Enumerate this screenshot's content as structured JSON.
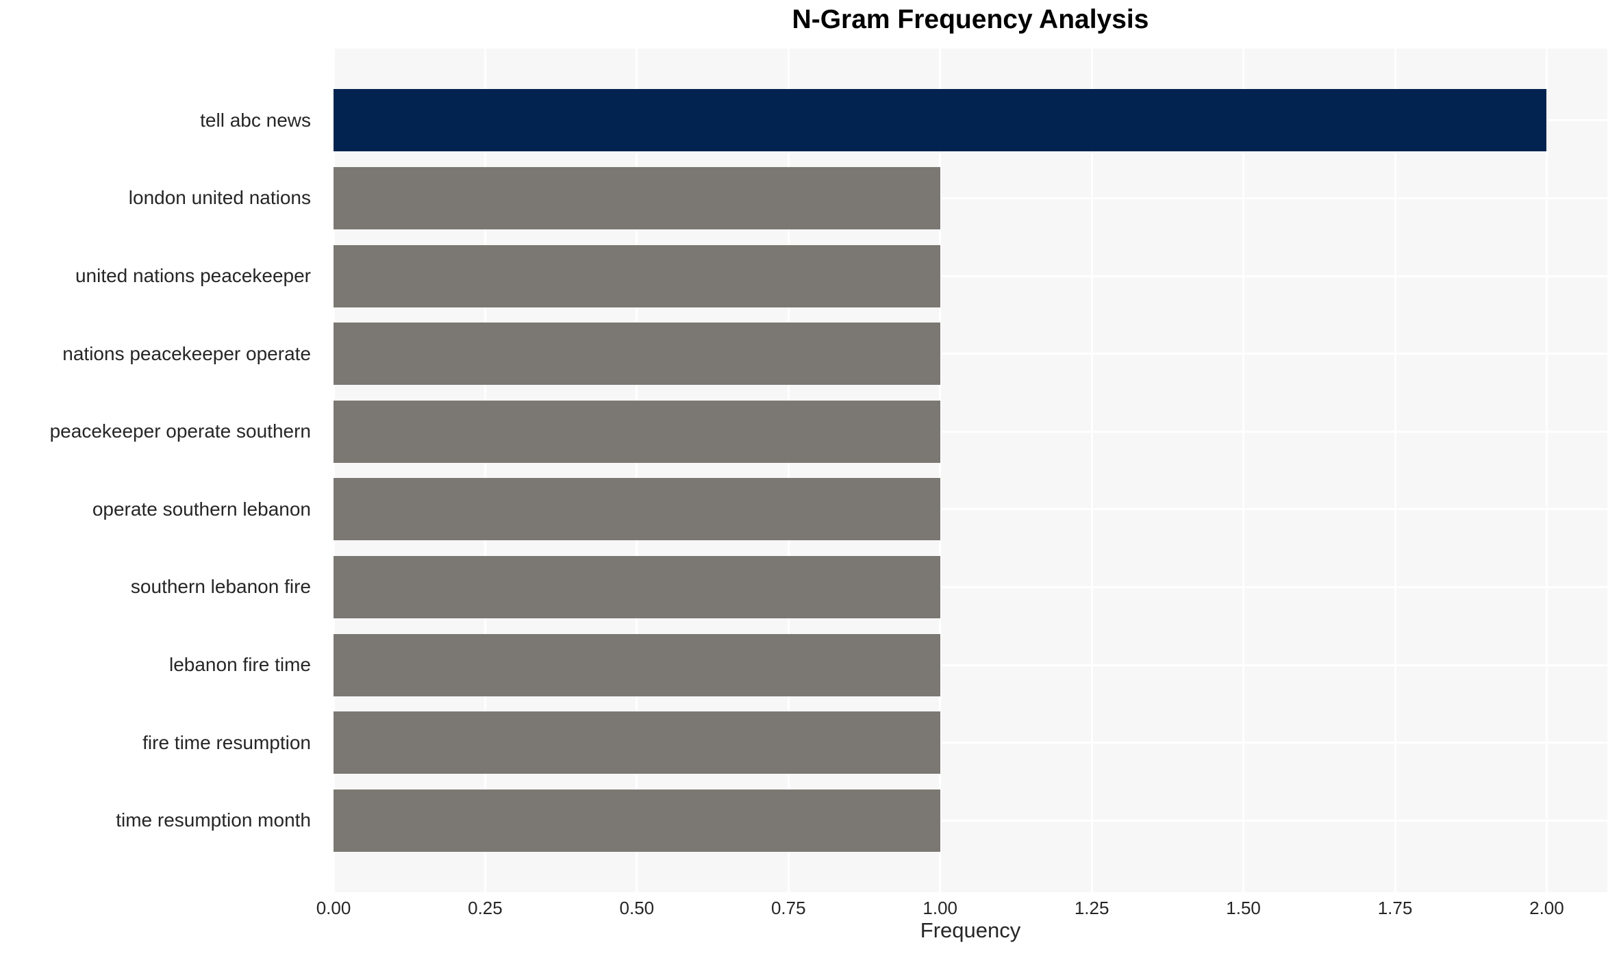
{
  "chart_data": {
    "type": "bar",
    "orientation": "horizontal",
    "title": "N-Gram Frequency Analysis",
    "xlabel": "Frequency",
    "ylabel": "",
    "categories": [
      "tell abc news",
      "london united nations",
      "united nations peacekeeper",
      "nations peacekeeper operate",
      "peacekeeper operate southern",
      "operate southern lebanon",
      "southern lebanon fire",
      "lebanon fire time",
      "fire time resumption",
      "time resumption month"
    ],
    "values": [
      2.0,
      1.0,
      1.0,
      1.0,
      1.0,
      1.0,
      1.0,
      1.0,
      1.0,
      1.0
    ],
    "bar_colors": [
      "#02234f",
      "#7b7873",
      "#7b7873",
      "#7b7873",
      "#7b7873",
      "#7b7873",
      "#7b7873",
      "#7b7873",
      "#7b7873",
      "#7b7873"
    ],
    "xlim": [
      0,
      2.1
    ],
    "xticks": [
      0.0,
      0.25,
      0.5,
      0.75,
      1.0,
      1.25,
      1.5,
      1.75,
      2.0
    ],
    "xtick_labels": [
      "0.00",
      "0.25",
      "0.50",
      "0.75",
      "1.00",
      "1.25",
      "1.50",
      "1.75",
      "2.00"
    ],
    "grid": true,
    "legend": false,
    "colors": {
      "highlight_bar": "#02234f",
      "default_bar": "#7b7873",
      "plot_background": "#f7f7f7",
      "grid_line": "#ffffff",
      "tick_text": "#262626",
      "title_text": "#000000"
    }
  }
}
